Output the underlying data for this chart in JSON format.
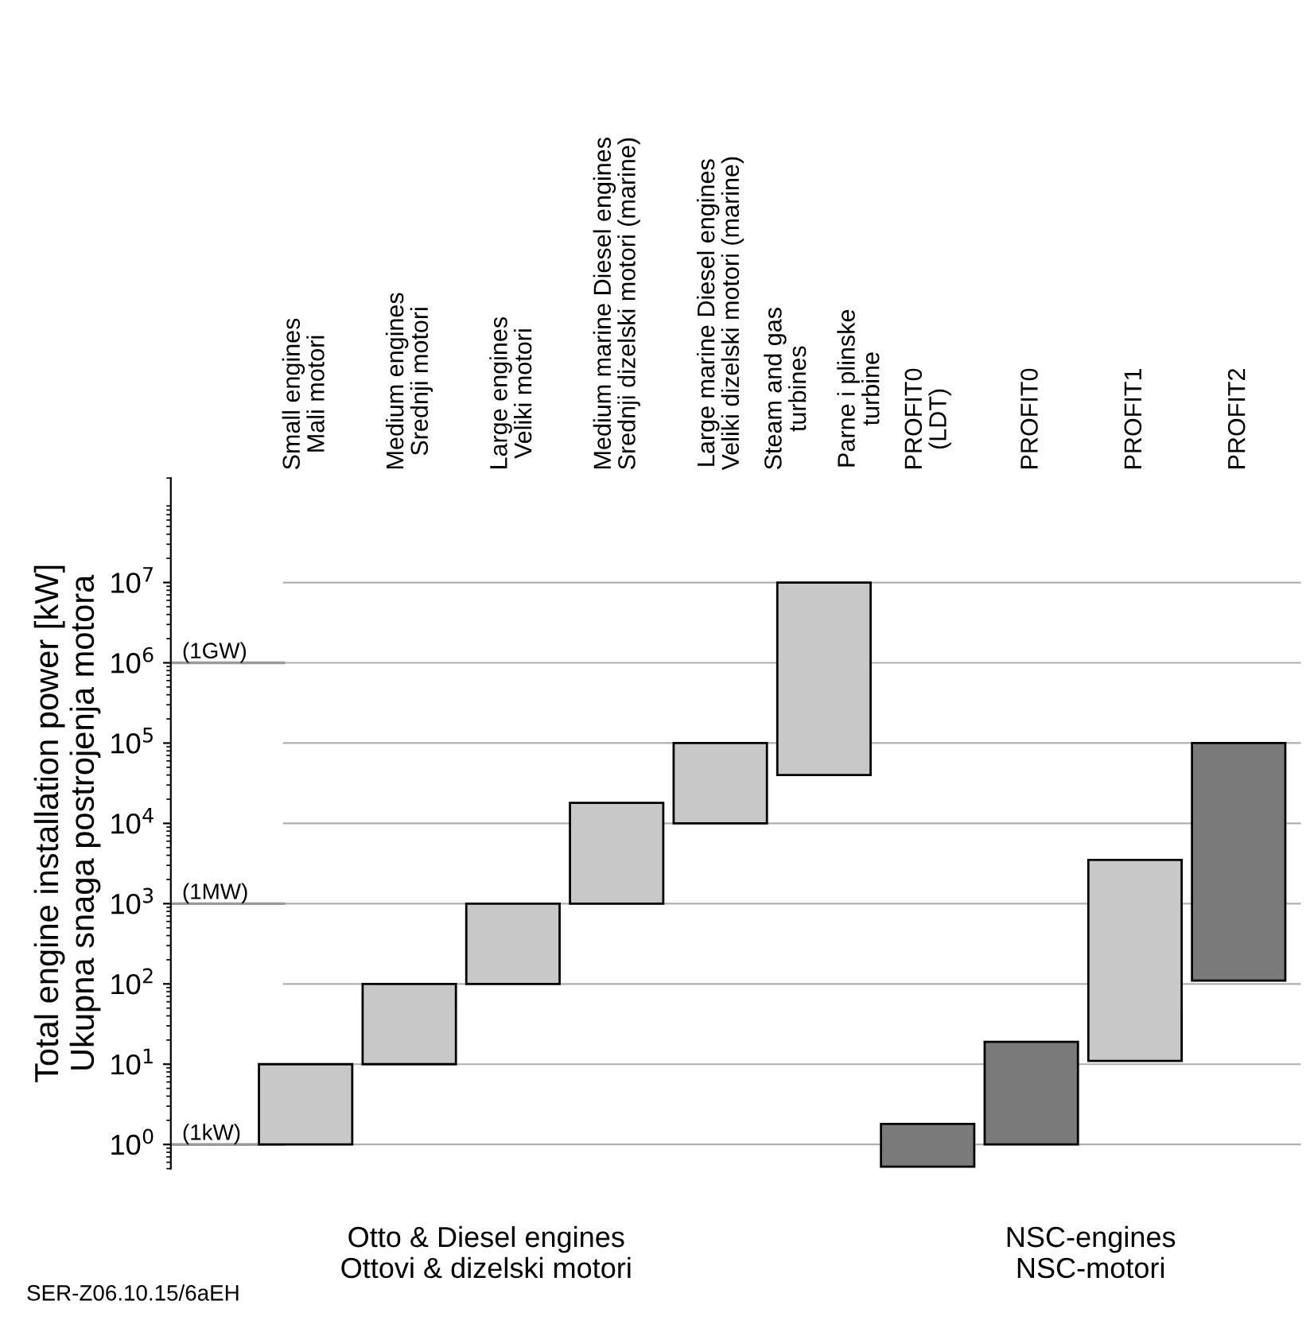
{
  "chart_data": {
    "type": "bar",
    "ylabel": "Total engine installation power [kW]\nUkupna snaga postrojenja motora",
    "categories": [
      "Small engines\nMali motori",
      "Medium engines\nSrednji motori",
      "Large engines\nVeliki motori",
      "Medium marine Diesel engines\nSrednji dizelski motori (marine)",
      "Large marine Diesel engines\nVeliki dizelski motori (marine)",
      "Steam and gas\nturbines\n\nParne i plinske\nturbine",
      "PROFIT0\n(LDT)",
      "PROFIT0",
      "PROFIT1",
      "PROFIT2"
    ],
    "base": [
      1,
      10,
      100,
      1000,
      10000,
      40000,
      0.53,
      1,
      11,
      110
    ],
    "values": [
      9,
      90,
      900,
      17000,
      90000,
      9960000,
      1.27,
      18,
      3489,
      99890
    ],
    "colors": [
      "#c8c8c8",
      "#c8c8c8",
      "#c8c8c8",
      "#c8c8c8",
      "#c8c8c8",
      "#c8c8c8",
      "#7a7a7a",
      "#7a7a7a",
      "#c8c8c8",
      "#7a7a7a"
    ],
    "log": "y",
    "ylim": [
      0.5,
      200000000
    ],
    "yticks": [
      {
        "value": 1,
        "label": "10$^{0}$"
      },
      {
        "value": 10,
        "label": "10$^{1}$"
      },
      {
        "value": 100,
        "label": "10$^{2}$"
      },
      {
        "value": 1000,
        "label": "10$^{3}$"
      },
      {
        "value": 10000,
        "label": "10$^{4}$"
      },
      {
        "value": 100000,
        "label": "10$^{5}$"
      },
      {
        "value": 1000000,
        "label": "10$^{6}$"
      },
      {
        "value": 10000000,
        "label": "10$^{7}$"
      }
    ],
    "grid": "y",
    "ref_lines": [
      {
        "axis": "y",
        "value": 1,
        "label": "(1kW)",
        "color": "#999999"
      },
      {
        "axis": "y",
        "value": 1000,
        "label": "(1MW)",
        "color": "#999999"
      },
      {
        "axis": "y",
        "value": 1000000,
        "label": "(1GW)",
        "color": "#999999"
      }
    ],
    "annotations": [
      "Otto & Diesel engines\nOttovi & dizelski motori",
      "NSC-engines\nNSC-motori",
      "SER-Z06.10.15/6aEH"
    ]
  }
}
